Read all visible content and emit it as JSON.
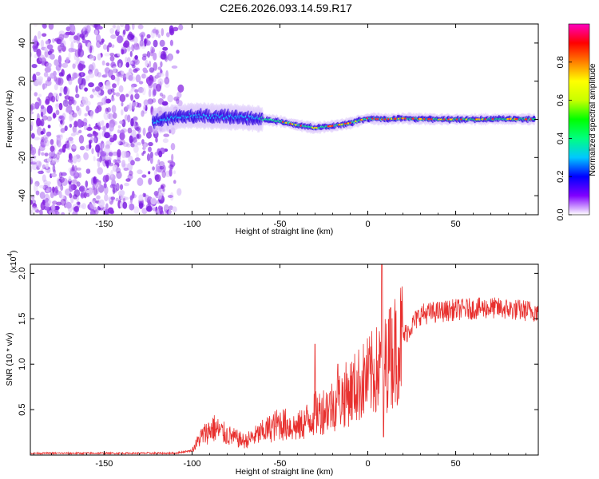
{
  "title": "C2E6.2026.093.14.59.R17",
  "chart_data": [
    {
      "type": "heatmap",
      "name": "spectrogram",
      "xlabel": "Height of straight line (km)",
      "ylabel": "Frequency (Hz)",
      "xlim": [
        -192,
        97
      ],
      "ylim": [
        -50,
        50
      ],
      "xticks": [
        -150,
        -100,
        -50,
        0,
        50
      ],
      "yticks": [
        -40,
        -20,
        0,
        20,
        40
      ],
      "noise_region": [
        -192,
        -105
      ],
      "signal_track": [
        {
          "x": -122,
          "y": -1
        },
        {
          "x": -110,
          "y": 1
        },
        {
          "x": -100,
          "y": 2
        },
        {
          "x": -85,
          "y": 1.5
        },
        {
          "x": -70,
          "y": 1
        },
        {
          "x": -60,
          "y": 0
        },
        {
          "x": -50,
          "y": -1
        },
        {
          "x": -40,
          "y": -3
        },
        {
          "x": -30,
          "y": -4.5
        },
        {
          "x": -20,
          "y": -3.5
        },
        {
          "x": -10,
          "y": -2
        },
        {
          "x": 0,
          "y": 0.5
        },
        {
          "x": 10,
          "y": 0
        },
        {
          "x": 20,
          "y": 0.5
        },
        {
          "x": 40,
          "y": 0
        },
        {
          "x": 60,
          "y": 0
        },
        {
          "x": 80,
          "y": 0.2
        },
        {
          "x": 95,
          "y": 0
        }
      ],
      "colorbar": {
        "label": "Normalized spectral amplitude",
        "range": [
          0,
          1
        ],
        "ticks": [
          "0.0",
          "0.2",
          "0.4",
          "0.6",
          "0.8"
        ],
        "tick_values": [
          0,
          0.2,
          0.4,
          0.6,
          0.8
        ],
        "colors": [
          "#ffffff",
          "#8000ff",
          "#0000ff",
          "#00c8ff",
          "#00ff80",
          "#00ff00",
          "#c8ff00",
          "#ffff00",
          "#ff8000",
          "#ff0000",
          "#ff00c0"
        ]
      }
    },
    {
      "type": "line",
      "name": "snr",
      "xlabel": "Height of straight line (km)",
      "ylabel": "SNR (10 * v/v)",
      "yscale_label": "(x10",
      "yscale_exp": "4",
      "yscale_close": ")",
      "xlim": [
        -192,
        97
      ],
      "ylim": [
        0,
        2.1
      ],
      "xticks": [
        -150,
        -100,
        -50,
        0,
        50
      ],
      "yticks": [
        0.5,
        1.0,
        1.5,
        2.0
      ],
      "ytick_labels": [
        "0.5",
        "1.0",
        "1.5",
        "2.0"
      ],
      "color": "#e8302e",
      "series_envelope": [
        {
          "x": -192,
          "y": 0.02
        },
        {
          "x": -110,
          "y": 0.02
        },
        {
          "x": -100,
          "y": 0.05
        },
        {
          "x": -95,
          "y": 0.2
        },
        {
          "x": -88,
          "y": 0.3
        },
        {
          "x": -80,
          "y": 0.22
        },
        {
          "x": -70,
          "y": 0.15
        },
        {
          "x": -60,
          "y": 0.25
        },
        {
          "x": -50,
          "y": 0.35
        },
        {
          "x": -40,
          "y": 0.3
        },
        {
          "x": -30,
          "y": 0.45
        },
        {
          "x": -20,
          "y": 0.55
        },
        {
          "x": -10,
          "y": 0.7
        },
        {
          "x": 0,
          "y": 0.85
        },
        {
          "x": 10,
          "y": 1.0
        },
        {
          "x": 20,
          "y": 1.3
        },
        {
          "x": 30,
          "y": 1.55
        },
        {
          "x": 50,
          "y": 1.6
        },
        {
          "x": 70,
          "y": 1.62
        },
        {
          "x": 97,
          "y": 1.58
        }
      ],
      "spikes": [
        {
          "x": -30,
          "y": 1.22
        },
        {
          "x": -17,
          "y": 1.0
        },
        {
          "x": 8,
          "y": 2.1
        },
        {
          "x": 9,
          "y": 0.2
        },
        {
          "x": 13,
          "y": 1.62
        }
      ]
    }
  ]
}
